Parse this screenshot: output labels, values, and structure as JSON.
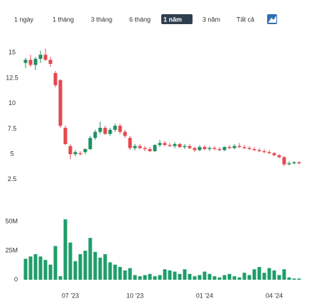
{
  "ranges": [
    "1 ngày",
    "1 tháng",
    "3 tháng",
    "6 tháng",
    "1 năm",
    "3 năm",
    "Tất cả"
  ],
  "selected": 4,
  "chart_data": [
    {
      "type": "candlestick",
      "categories": [
        null,
        null,
        null,
        null,
        null,
        null,
        null,
        null,
        null,
        "07 '23",
        null,
        null,
        null,
        null,
        null,
        null,
        null,
        null,
        null,
        null,
        null,
        null,
        "10 '23",
        null,
        null,
        null,
        null,
        null,
        null,
        null,
        null,
        null,
        null,
        null,
        null,
        null,
        "01 '24",
        null,
        null,
        null,
        null,
        null,
        null,
        null,
        null,
        null,
        null,
        null,
        null,
        null,
        "04 '24",
        null,
        null,
        null,
        null,
        null
      ],
      "open": [
        14.0,
        14.3,
        13.8,
        14.4,
        14.8,
        14.3,
        13.0,
        12.3,
        7.6,
        5.8,
        5.0,
        5.1,
        5.2,
        5.5,
        6.6,
        7.2,
        7.6,
        7.0,
        7.4,
        7.8,
        7.2,
        6.6,
        5.6,
        5.8,
        5.6,
        5.5,
        5.3,
        5.9,
        6.1,
        5.9,
        5.8,
        6.0,
        5.7,
        5.8,
        5.6,
        5.4,
        5.7,
        5.5,
        5.6,
        5.5,
        5.4,
        5.7,
        5.6,
        5.8,
        5.7,
        5.6,
        5.5,
        5.4,
        5.3,
        5.2,
        5.1,
        4.9,
        4.7,
        4.0,
        4.1,
        4.2
      ],
      "high": [
        14.5,
        14.8,
        14.6,
        15.2,
        15.4,
        14.6,
        13.2,
        12.4,
        7.8,
        6.0,
        5.4,
        5.3,
        5.6,
        6.8,
        7.4,
        8.2,
        7.8,
        7.6,
        8.0,
        8.0,
        7.4,
        6.8,
        6.0,
        6.0,
        5.8,
        5.7,
        6.0,
        6.4,
        6.3,
        6.1,
        6.2,
        6.1,
        6.0,
        6.0,
        5.7,
        5.9,
        5.9,
        5.8,
        5.8,
        5.7,
        5.8,
        5.9,
        6.0,
        6.1,
        5.9,
        5.8,
        5.7,
        5.6,
        5.5,
        5.4,
        5.2,
        5.0,
        4.8,
        4.3,
        4.3,
        4.3
      ],
      "low": [
        13.5,
        13.6,
        13.3,
        14.0,
        14.2,
        13.6,
        11.6,
        7.6,
        5.9,
        4.5,
        4.8,
        4.9,
        5.0,
        5.4,
        6.4,
        7.0,
        6.9,
        6.8,
        7.2,
        7.0,
        6.6,
        5.4,
        5.4,
        5.5,
        5.3,
        5.2,
        5.2,
        5.7,
        5.8,
        5.7,
        5.6,
        5.6,
        5.5,
        5.5,
        5.2,
        5.3,
        5.4,
        5.3,
        5.4,
        5.3,
        5.3,
        5.5,
        5.5,
        5.6,
        5.5,
        5.4,
        5.3,
        5.2,
        5.1,
        5.0,
        4.8,
        4.6,
        3.8,
        3.9,
        4.0,
        4.0
      ],
      "close": [
        14.3,
        13.8,
        14.4,
        14.8,
        14.3,
        13.9,
        11.8,
        7.8,
        6.0,
        5.0,
        5.2,
        5.0,
        5.5,
        6.6,
        7.2,
        7.6,
        7.0,
        7.4,
        7.8,
        7.2,
        6.8,
        5.6,
        5.8,
        5.6,
        5.5,
        5.3,
        5.9,
        6.1,
        5.9,
        5.8,
        6.0,
        5.7,
        5.8,
        5.6,
        5.4,
        5.7,
        5.5,
        5.6,
        5.5,
        5.4,
        5.7,
        5.6,
        5.8,
        5.7,
        5.6,
        5.5,
        5.4,
        5.3,
        5.2,
        5.1,
        4.9,
        4.7,
        4.0,
        4.1,
        4.2,
        4.1
      ],
      "up_color": "#1f8f63",
      "down_color": "#e5484d",
      "ylim": [
        2,
        16
      ],
      "yticks": [
        2.5,
        5,
        7.5,
        10,
        12.5,
        15
      ]
    },
    {
      "type": "bar",
      "values": [
        18000000,
        20000000,
        22000000,
        20000000,
        17000000,
        13000000,
        29000000,
        3000000,
        52000000,
        32000000,
        16000000,
        22000000,
        25000000,
        36000000,
        24000000,
        19000000,
        22000000,
        15000000,
        13000000,
        11000000,
        8000000,
        10000000,
        4000000,
        3000000,
        4000000,
        5000000,
        3000000,
        4000000,
        9000000,
        8000000,
        7000000,
        5000000,
        9000000,
        5000000,
        3000000,
        4000000,
        7000000,
        5000000,
        3000000,
        2000000,
        4000000,
        5000000,
        3000000,
        2000000,
        6000000,
        4000000,
        9000000,
        11000000,
        6000000,
        10000000,
        8000000,
        4000000,
        9000000,
        2000000,
        1000000,
        1000000
      ],
      "color": "#1f9d6b",
      "ylim": [
        0,
        55000000
      ],
      "yticks": [
        {
          "value": 0,
          "label": "0"
        },
        {
          "value": 25000000,
          "label": "25M"
        },
        {
          "value": 50000000,
          "label": "50M"
        }
      ]
    }
  ]
}
